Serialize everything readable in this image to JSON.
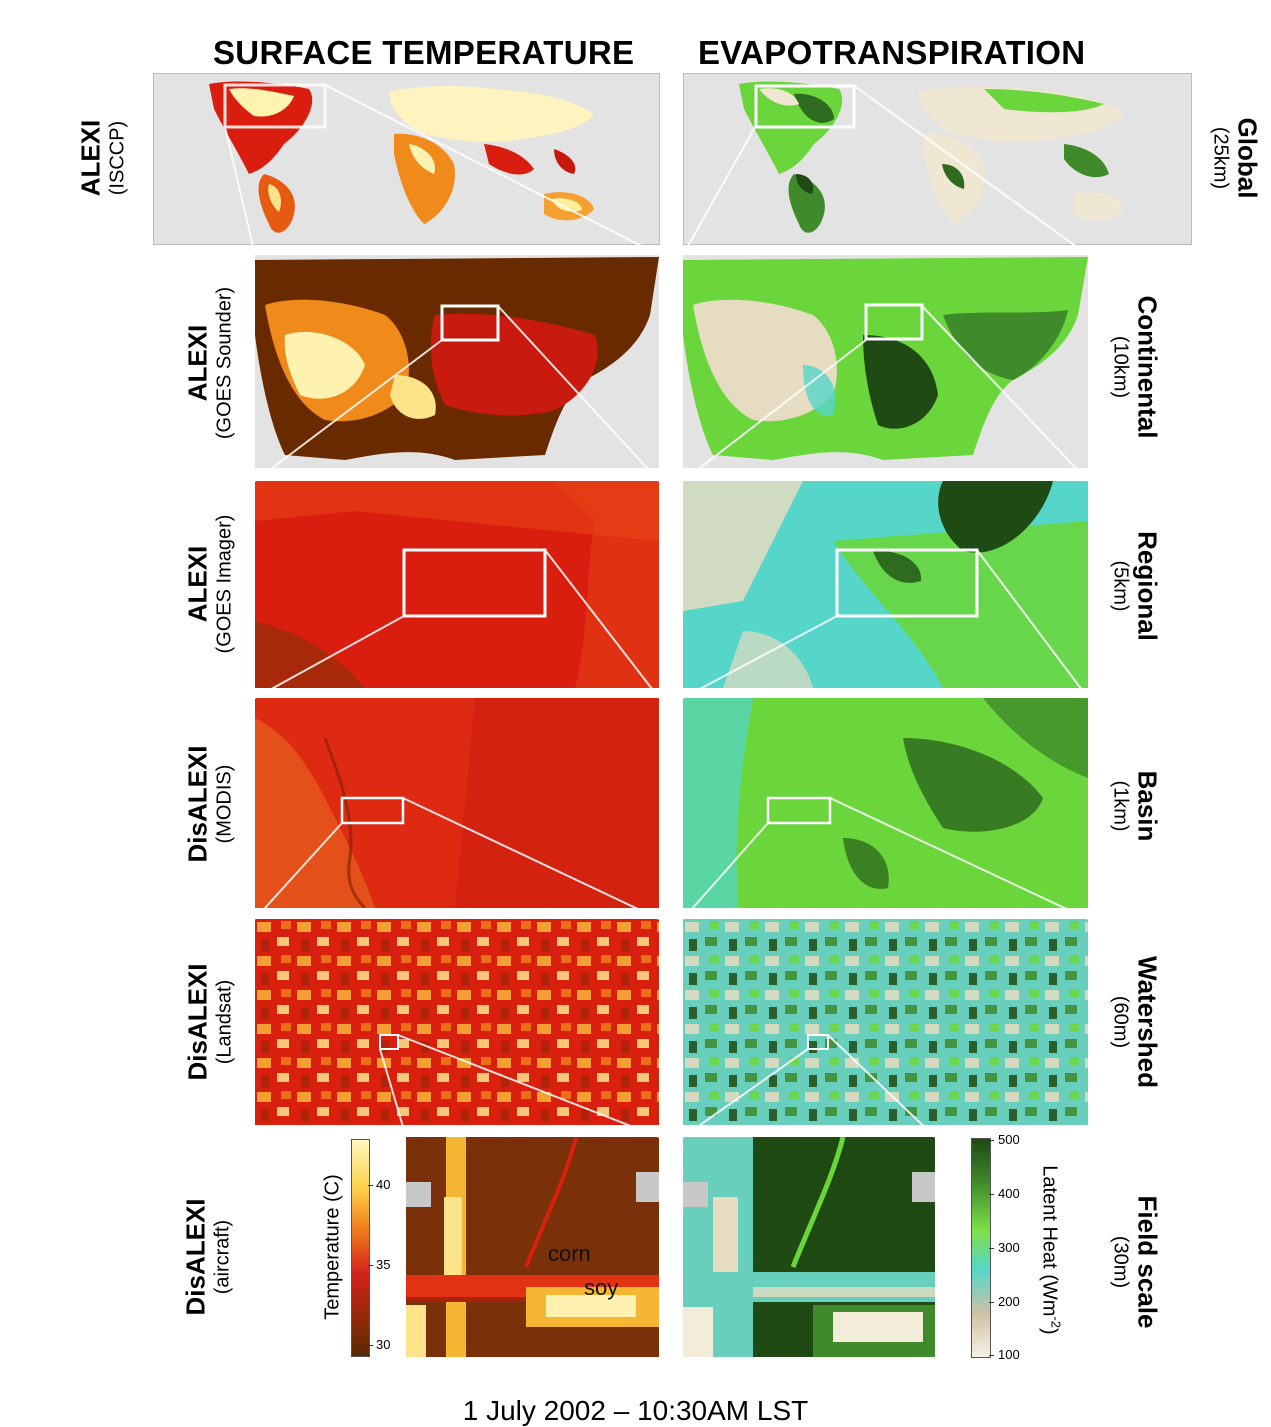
{
  "headers": {
    "left": "SURFACE TEMPERATURE",
    "right": "EVAPOTRANSPIRATION"
  },
  "rows": [
    {
      "model": "ALEXI",
      "sensor": "(ISCCP)",
      "scale": "Global",
      "resolution": "(25km)"
    },
    {
      "model": "ALEXI",
      "sensor": "(GOES Sounder)",
      "scale": "Continental",
      "resolution": "(10km)"
    },
    {
      "model": "ALEXI",
      "sensor": "(GOES Imager)",
      "scale": "Regional",
      "resolution": "(5km)"
    },
    {
      "model": "DisALEXI",
      "sensor": "(MODIS)",
      "scale": "Basin",
      "resolution": "(1km)"
    },
    {
      "model": "DisALEXI",
      "sensor": "(Landsat)",
      "scale": "Watershed",
      "resolution": "(60m)"
    },
    {
      "model": "DisALEXI",
      "sensor": "(aircraft)",
      "scale": "Field scale",
      "resolution": "(30m)"
    }
  ],
  "temperature_colorbar": {
    "label": "Temperature (C)",
    "ticks": [
      "40",
      "35",
      "30"
    ],
    "colors": [
      "#fff7c0",
      "#fdd24a",
      "#f07a1a",
      "#d4211c",
      "#8a2a08",
      "#5a2a00"
    ]
  },
  "latent_heat_colorbar": {
    "label": "Latent Heat (Wm",
    "label_sup": "-2",
    "label_end": ")",
    "ticks": [
      "500",
      "400",
      "300",
      "200",
      "100"
    ],
    "colors": [
      "#1f4a14",
      "#3f8a2a",
      "#7de04a",
      "#55d6c8",
      "#cfc2a3",
      "#f6f1e2"
    ]
  },
  "field_labels": {
    "corn": "corn",
    "soy": "soy"
  },
  "caption": "1 July 2002 – 10:30AM LST",
  "colors": {
    "map_background": "#e3e3e3",
    "temp_dark": "#6a2a00",
    "temp_red": "#d91e10",
    "temp_light": "#fff5bf",
    "et_dark": "#1f4a14",
    "et_green": "#6ad63c",
    "et_cyan": "#55d6c8",
    "et_beige": "#efe7d2",
    "connector": "#ffffff"
  }
}
